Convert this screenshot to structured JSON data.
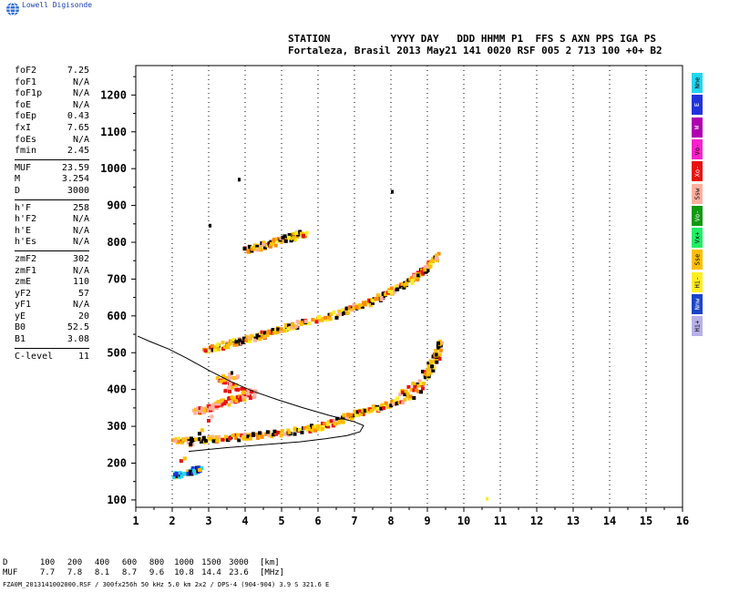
{
  "brand": "Lowell Digisonde",
  "header": {
    "line1": "STATION          YYYY DAY   DDD HHMM P1  FFS S AXN PPS IGA PS",
    "line2": "Fortaleza, Brasil 2013 May21 141 0020 RSF 005 2 713 100 +0+ B2"
  },
  "params_groups": [
    [
      {
        "name": "foF2",
        "value": "7.25"
      },
      {
        "name": "foF1",
        "value": "N/A"
      },
      {
        "name": "foF1p",
        "value": "N/A"
      },
      {
        "name": "foE",
        "value": "N/A"
      },
      {
        "name": "foEp",
        "value": "0.43"
      },
      {
        "name": "fxI",
        "value": "7.65"
      },
      {
        "name": "foEs",
        "value": "N/A"
      },
      {
        "name": "fmin",
        "value": "2.45"
      }
    ],
    [
      {
        "name": "MUF",
        "value": "23.59"
      },
      {
        "name": "M",
        "value": "3.254"
      },
      {
        "name": "D",
        "value": "3000"
      }
    ],
    [
      {
        "name": "h'F",
        "value": "258"
      },
      {
        "name": "h'F2",
        "value": "N/A"
      },
      {
        "name": "h'E",
        "value": "N/A"
      },
      {
        "name": "h'Es",
        "value": "N/A"
      }
    ],
    [
      {
        "name": "zmF2",
        "value": "302"
      },
      {
        "name": "zmF1",
        "value": "N/A"
      },
      {
        "name": "zmE",
        "value": "110"
      },
      {
        "name": "yF2",
        "value": "57"
      },
      {
        "name": "yF1",
        "value": "N/A"
      },
      {
        "name": "yE",
        "value": "20"
      },
      {
        "name": "B0",
        "value": "52.5"
      },
      {
        "name": "B1",
        "value": "3.08"
      }
    ],
    [
      {
        "name": "C-level",
        "value": "11"
      }
    ]
  ],
  "polarization_legend": [
    {
      "label": "Nne",
      "color": "#22d6f0"
    },
    {
      "label": "E",
      "color": "#2233dd"
    },
    {
      "label": "W",
      "color": "#b000b0"
    },
    {
      "label": "Vo-",
      "color": "#ff22cc"
    },
    {
      "label": "Xo-",
      "color": "#e81010"
    },
    {
      "label": "Ssw",
      "color": "#ffb0a0"
    },
    {
      "label": "Vo-",
      "color": "#119911"
    },
    {
      "label": "Vx+",
      "color": "#22ee66"
    },
    {
      "label": "Sse",
      "color": "#ffc000"
    },
    {
      "label": "Hi-",
      "color": "#ffee22"
    },
    {
      "label": "Nnw",
      "color": "#1a44cc"
    },
    {
      "label": "Hi+",
      "color": "#b8b0e8"
    }
  ],
  "footer": {
    "d_label": "D",
    "muf_label": "MUF",
    "d_values": [
      "100",
      "200",
      "400",
      "600",
      "800",
      "1000",
      "1500",
      "3000"
    ],
    "muf_values": [
      "7.7",
      "7.8",
      "8.1",
      "8.7",
      "9.6",
      "10.8",
      "14.4",
      "23.6"
    ],
    "d_unit": "[km]",
    "muf_unit": "[MHz]",
    "file_line": "FZA0M_2013141002000.RSF / 300fx256h 50 kHz 5.0 km 2x2 / DPS-4 (904-904)  3.9 S 321.6 E"
  },
  "chart_data": {
    "type": "scatter",
    "xlim": [
      1,
      16
    ],
    "ylim": [
      80,
      1280
    ],
    "x_ticks": [
      "1",
      "2",
      "3",
      "4",
      "5",
      "6",
      "7",
      "8",
      "9",
      "10",
      "11",
      "12",
      "13",
      "14",
      "15",
      "16"
    ],
    "y_ticks": [
      "100",
      "200",
      "300",
      "400",
      "500",
      "600",
      "700",
      "800",
      "900",
      "1000",
      "1100",
      "1200"
    ],
    "grid": "dotted-vertical",
    "series": [
      {
        "trace": "F-trace first hop",
        "points": [
          [
            2.0,
            262
          ],
          [
            2.6,
            264
          ],
          [
            3.2,
            268
          ],
          [
            3.8,
            272
          ],
          [
            4.4,
            278
          ],
          [
            5.0,
            284
          ],
          [
            5.6,
            292
          ],
          [
            6.1,
            302
          ],
          [
            6.5,
            316
          ],
          [
            6.9,
            332
          ],
          [
            7.3,
            344
          ],
          [
            7.7,
            354
          ],
          [
            8.1,
            368
          ],
          [
            8.5,
            388
          ],
          [
            8.8,
            414
          ],
          [
            9.0,
            448
          ],
          [
            9.2,
            488
          ],
          [
            9.3,
            520
          ]
        ]
      },
      {
        "trace": "second hop",
        "points": [
          [
            2.9,
            508
          ],
          [
            3.4,
            522
          ],
          [
            3.9,
            536
          ],
          [
            4.4,
            548
          ],
          [
            4.8,
            560
          ],
          [
            5.2,
            572
          ],
          [
            5.6,
            584
          ],
          [
            6.6,
            608
          ],
          [
            7.0,
            624
          ],
          [
            7.4,
            640
          ],
          [
            7.8,
            660
          ],
          [
            8.2,
            680
          ],
          [
            8.6,
            704
          ],
          [
            8.9,
            730
          ],
          [
            9.2,
            764
          ]
        ]
      },
      {
        "trace": "third hop",
        "points": [
          [
            4.0,
            780
          ],
          [
            4.4,
            790
          ],
          [
            4.8,
            802
          ],
          [
            5.2,
            814
          ],
          [
            5.6,
            826
          ]
        ]
      },
      {
        "trace": "spread echoes",
        "points": [
          [
            2.6,
            342
          ],
          [
            3.0,
            352
          ],
          [
            3.4,
            366
          ],
          [
            3.8,
            378
          ],
          [
            4.2,
            390
          ],
          [
            3.2,
            428
          ],
          [
            3.7,
            440
          ],
          [
            2.0,
            168
          ],
          [
            2.4,
            174
          ],
          [
            2.7,
            186
          ]
        ]
      }
    ],
    "profile": {
      "name": "electron density profile",
      "points": [
        [
          2.45,
          232
        ],
        [
          3.5,
          242
        ],
        [
          4.5,
          250
        ],
        [
          5.5,
          258
        ],
        [
          6.2,
          266
        ],
        [
          6.8,
          275
        ],
        [
          7.15,
          285
        ],
        [
          7.25,
          302
        ],
        [
          7.0,
          312
        ],
        [
          6.3,
          330
        ],
        [
          5.6,
          350
        ],
        [
          4.9,
          372
        ],
        [
          4.2,
          396
        ],
        [
          3.6,
          422
        ],
        [
          3.0,
          452
        ],
        [
          2.4,
          485
        ],
        [
          1.9,
          510
        ],
        [
          1.4,
          530
        ],
        [
          1.05,
          545
        ]
      ]
    }
  }
}
